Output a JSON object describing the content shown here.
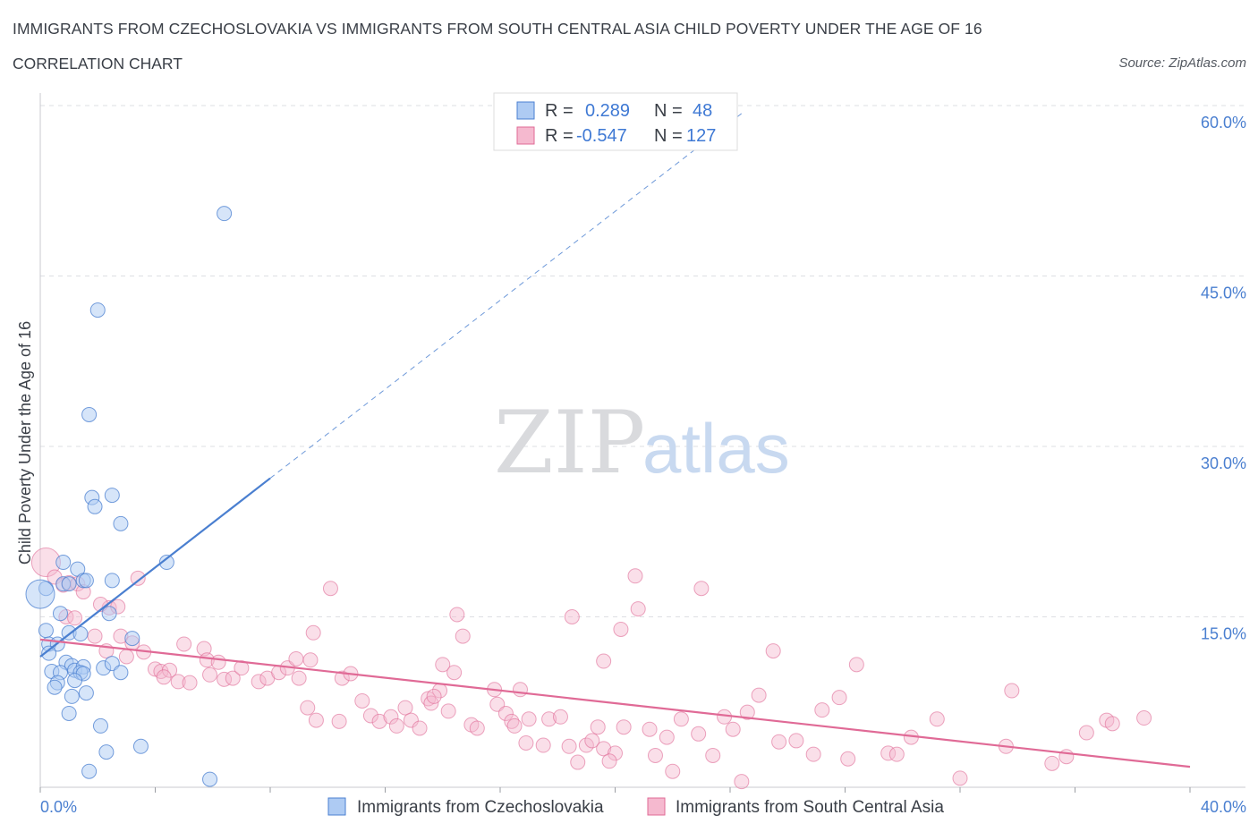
{
  "header": {
    "title": "IMMIGRANTS FROM CZECHOSLOVAKIA VS IMMIGRANTS FROM SOUTH CENTRAL ASIA CHILD POVERTY UNDER THE AGE OF 16",
    "subtitle": "CORRELATION CHART",
    "source": "Source: ZipAtlas.com"
  },
  "watermark": {
    "zip": "ZIP",
    "atlas": "atlas"
  },
  "legend": {
    "r_label": "R =",
    "n_label": "N =",
    "rows": [
      {
        "r": "0.289",
        "n": "48"
      },
      {
        "r": "-0.547",
        "n": "127"
      }
    ]
  },
  "chart_data": {
    "type": "scatter",
    "xlabel": "",
    "ylabel": "Child Poverty Under the Age of 16",
    "xlim": [
      0,
      40
    ],
    "ylim": [
      0,
      60
    ],
    "x_tick_labels": [
      "0.0%",
      "40.0%"
    ],
    "y_ticks": [
      15,
      30,
      45,
      60
    ],
    "y_tick_labels": [
      "15.0%",
      "30.0%",
      "45.0%",
      "60.0%"
    ],
    "grid": true,
    "legend_placement": "top-center",
    "colors": {
      "czech": "#4a7fd0",
      "czech_fill": "#aecbf3",
      "sca": "#e06a96",
      "sca_fill": "#f5b9cf"
    },
    "series": [
      {
        "name": "Immigrants from Czechoslovakia",
        "r": 0.289,
        "n": 48,
        "trend": {
          "x_start": 0.0,
          "y_start": 11.5,
          "x_solid_end": 8.0,
          "y_solid_end": 27.2,
          "x_dash_end": 24.5,
          "y_dash_end": 59.5
        },
        "points": [
          [
            6.4,
            50.5
          ],
          [
            2.0,
            42.0
          ],
          [
            1.7,
            32.8
          ],
          [
            1.8,
            25.5
          ],
          [
            2.5,
            25.7
          ],
          [
            1.9,
            24.7
          ],
          [
            2.8,
            23.2
          ],
          [
            4.4,
            19.8
          ],
          [
            0.8,
            19.8
          ],
          [
            1.3,
            19.2
          ],
          [
            1.5,
            18.2
          ],
          [
            1.6,
            18.2
          ],
          [
            2.5,
            18.2
          ],
          [
            0.8,
            17.9
          ],
          [
            0.2,
            17.5
          ],
          [
            1.0,
            17.9
          ],
          [
            0.7,
            15.3
          ],
          [
            2.4,
            15.3
          ],
          [
            0.2,
            13.8
          ],
          [
            1.0,
            13.6
          ],
          [
            1.4,
            13.5
          ],
          [
            3.2,
            13.1
          ],
          [
            0.3,
            12.6
          ],
          [
            0.6,
            12.6
          ],
          [
            0.3,
            11.8
          ],
          [
            0.9,
            11.0
          ],
          [
            1.1,
            10.7
          ],
          [
            1.2,
            10.3
          ],
          [
            1.5,
            10.6
          ],
          [
            2.2,
            10.5
          ],
          [
            2.5,
            10.9
          ],
          [
            0.4,
            10.2
          ],
          [
            0.7,
            10.1
          ],
          [
            1.4,
            10.1
          ],
          [
            1.5,
            10.0
          ],
          [
            2.8,
            10.1
          ],
          [
            1.2,
            9.4
          ],
          [
            0.6,
            9.2
          ],
          [
            0.5,
            8.8
          ],
          [
            1.6,
            8.3
          ],
          [
            1.1,
            8.0
          ],
          [
            1.0,
            6.5
          ],
          [
            2.1,
            5.4
          ],
          [
            3.5,
            3.6
          ],
          [
            2.3,
            3.1
          ],
          [
            1.7,
            1.4
          ],
          [
            5.9,
            0.7
          ],
          [
            0.0,
            17.0
          ]
        ]
      },
      {
        "name": "Immigrants from South Central Asia",
        "r": -0.547,
        "n": 127,
        "trend": {
          "x_start": 0.0,
          "y_start": 13.0,
          "x_end": 40.0,
          "y_end": 1.8
        },
        "points": [
          [
            0.2,
            19.8
          ],
          [
            0.5,
            18.5
          ],
          [
            0.8,
            17.8
          ],
          [
            1.0,
            18.0
          ],
          [
            1.3,
            17.9
          ],
          [
            1.5,
            17.2
          ],
          [
            0.9,
            15.0
          ],
          [
            1.2,
            14.9
          ],
          [
            2.4,
            15.8
          ],
          [
            1.9,
            13.3
          ],
          [
            2.1,
            16.1
          ],
          [
            2.7,
            15.9
          ],
          [
            3.4,
            18.4
          ],
          [
            2.8,
            13.3
          ],
          [
            3.2,
            12.7
          ],
          [
            2.3,
            12.0
          ],
          [
            3.6,
            11.9
          ],
          [
            3.0,
            11.5
          ],
          [
            4.0,
            10.4
          ],
          [
            4.2,
            10.2
          ],
          [
            4.5,
            10.3
          ],
          [
            4.3,
            9.7
          ],
          [
            4.8,
            9.3
          ],
          [
            5.2,
            9.2
          ],
          [
            5.0,
            12.6
          ],
          [
            5.7,
            12.2
          ],
          [
            5.8,
            11.2
          ],
          [
            6.2,
            11.0
          ],
          [
            5.9,
            9.9
          ],
          [
            6.4,
            9.5
          ],
          [
            6.7,
            9.6
          ],
          [
            7.0,
            10.5
          ],
          [
            7.6,
            9.3
          ],
          [
            7.9,
            9.6
          ],
          [
            8.3,
            10.1
          ],
          [
            8.6,
            10.5
          ],
          [
            8.9,
            11.3
          ],
          [
            9.4,
            11.2
          ],
          [
            9.0,
            9.6
          ],
          [
            9.5,
            13.6
          ],
          [
            10.1,
            17.5
          ],
          [
            10.5,
            9.6
          ],
          [
            10.8,
            10.0
          ],
          [
            9.3,
            7.0
          ],
          [
            9.6,
            5.9
          ],
          [
            10.4,
            5.8
          ],
          [
            11.2,
            7.6
          ],
          [
            11.5,
            6.3
          ],
          [
            11.8,
            5.8
          ],
          [
            12.2,
            6.2
          ],
          [
            12.4,
            5.4
          ],
          [
            12.7,
            7.0
          ],
          [
            12.9,
            5.9
          ],
          [
            13.2,
            5.2
          ],
          [
            13.5,
            7.8
          ],
          [
            13.6,
            7.4
          ],
          [
            13.9,
            8.5
          ],
          [
            13.7,
            8.0
          ],
          [
            14.2,
            6.7
          ],
          [
            14.0,
            10.8
          ],
          [
            14.5,
            15.2
          ],
          [
            14.4,
            10.1
          ],
          [
            14.7,
            13.3
          ],
          [
            15.0,
            5.5
          ],
          [
            15.2,
            5.2
          ],
          [
            15.9,
            7.3
          ],
          [
            16.2,
            6.5
          ],
          [
            16.4,
            5.8
          ],
          [
            15.8,
            8.6
          ],
          [
            16.7,
            8.6
          ],
          [
            17.0,
            6.0
          ],
          [
            16.5,
            5.4
          ],
          [
            16.9,
            3.9
          ],
          [
            17.5,
            3.7
          ],
          [
            17.7,
            6.0
          ],
          [
            18.1,
            6.2
          ],
          [
            18.4,
            3.6
          ],
          [
            18.5,
            15.0
          ],
          [
            19.0,
            3.7
          ],
          [
            18.7,
            2.2
          ],
          [
            19.2,
            4.1
          ],
          [
            19.4,
            5.3
          ],
          [
            19.6,
            11.1
          ],
          [
            19.6,
            3.4
          ],
          [
            20.0,
            3.0
          ],
          [
            19.8,
            2.3
          ],
          [
            20.3,
            5.3
          ],
          [
            20.2,
            13.9
          ],
          [
            20.8,
            15.7
          ],
          [
            20.7,
            18.6
          ],
          [
            21.2,
            5.1
          ],
          [
            21.4,
            2.8
          ],
          [
            21.8,
            4.4
          ],
          [
            22.0,
            1.4
          ],
          [
            22.3,
            6.0
          ],
          [
            22.9,
            4.7
          ],
          [
            23.4,
            2.8
          ],
          [
            23.0,
            17.5
          ],
          [
            23.8,
            6.2
          ],
          [
            24.1,
            5.1
          ],
          [
            24.6,
            6.6
          ],
          [
            24.4,
            0.5
          ],
          [
            25.0,
            8.1
          ],
          [
            25.5,
            12.0
          ],
          [
            25.7,
            4.0
          ],
          [
            26.3,
            4.1
          ],
          [
            26.9,
            2.9
          ],
          [
            27.2,
            6.8
          ],
          [
            27.8,
            7.9
          ],
          [
            28.1,
            2.5
          ],
          [
            28.4,
            10.8
          ],
          [
            29.5,
            3.0
          ],
          [
            29.8,
            2.9
          ],
          [
            30.3,
            4.4
          ],
          [
            31.2,
            6.0
          ],
          [
            32.0,
            0.8
          ],
          [
            33.6,
            3.6
          ],
          [
            33.8,
            8.5
          ],
          [
            35.2,
            2.1
          ],
          [
            35.7,
            2.7
          ],
          [
            36.4,
            4.8
          ],
          [
            37.1,
            5.9
          ],
          [
            37.3,
            5.6
          ],
          [
            38.4,
            6.1
          ]
        ]
      }
    ]
  },
  "bottom_legend": [
    {
      "label": "Immigrants from Czechoslovakia"
    },
    {
      "label": "Immigrants from South Central Asia"
    }
  ]
}
